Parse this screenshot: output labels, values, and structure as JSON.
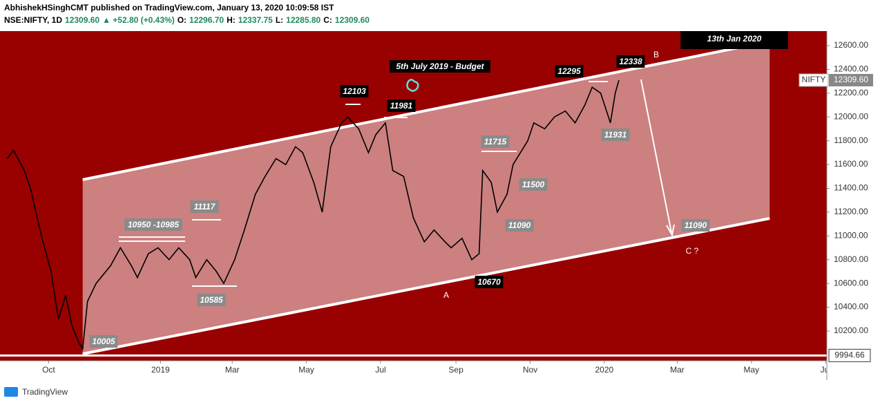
{
  "header": {
    "line1": "AbhishekHSinghCMT published on TradingView.com, January 13, 2020 10:09:58 IST",
    "line2": [
      "NSE:NIFTY, 1D",
      "12309.60",
      "▲ +52.80 (+0.43%)",
      "O:",
      "12296.70",
      "H:",
      "12337.75",
      "L:",
      "12285.80",
      "C:",
      "12309.60"
    ]
  },
  "chart_data": {
    "type": "line",
    "x": [
      "2018-08-28",
      "2018-09-02",
      "2018-09-11",
      "2018-09-16",
      "2018-09-25",
      "2018-10-03",
      "2018-10-09",
      "2018-10-15",
      "2018-10-20",
      "2018-10-26",
      "2018-10-29",
      "2018-11-02",
      "2018-11-09",
      "2018-11-21",
      "2018-11-29",
      "2018-12-08",
      "2018-12-13",
      "2018-12-22",
      "2018-12-30",
      "2019-01-08",
      "2019-01-16",
      "2019-01-25",
      "2019-01-30",
      "2019-02-08",
      "2019-02-16",
      "2019-02-22",
      "2019-03-03",
      "2019-03-11",
      "2019-03-20",
      "2019-03-28",
      "2019-04-06",
      "2019-04-14",
      "2019-04-22",
      "2019-04-28",
      "2019-05-07",
      "2019-05-14",
      "2019-05-21",
      "2019-05-30",
      "2019-06-04",
      "2019-06-13",
      "2019-06-21",
      "2019-06-27",
      "2019-07-05",
      "2019-07-11",
      "2019-07-20",
      "2019-07-28",
      "2019-08-06",
      "2019-08-14",
      "2019-08-23",
      "2019-08-28",
      "2019-09-06",
      "2019-09-14",
      "2019-09-20",
      "2019-09-23",
      "2019-09-30",
      "2019-10-05",
      "2019-10-13",
      "2019-10-18",
      "2019-10-24",
      "2019-10-30",
      "2019-11-04",
      "2019-11-13",
      "2019-11-21",
      "2019-11-30",
      "2019-12-08",
      "2019-12-16",
      "2019-12-22",
      "2019-12-29",
      "2020-01-06",
      "2020-01-10",
      "2020-01-13"
    ],
    "series": [
      {
        "name": "NIFTY",
        "color": "#000000",
        "values": [
          11650,
          11720,
          11550,
          11400,
          11000,
          10700,
          10300,
          10500,
          10250,
          10100,
          10050,
          10450,
          10600,
          10750,
          10900,
          10750,
          10650,
          10850,
          10900,
          10800,
          10900,
          10800,
          10650,
          10800,
          10700,
          10600,
          10800,
          11050,
          11350,
          11500,
          11650,
          11600,
          11750,
          11700,
          11450,
          11200,
          11750,
          11950,
          12000,
          11900,
          11700,
          11850,
          11950,
          11550,
          11500,
          11150,
          10950,
          11050,
          10950,
          10900,
          10980,
          10800,
          10850,
          11550,
          11450,
          11200,
          11350,
          11600,
          11700,
          11800,
          11950,
          11900,
          12000,
          12050,
          11950,
          12100,
          12250,
          12200,
          11950,
          12200,
          12309.6
        ]
      }
    ],
    "xlim": [
      "2018-08-22",
      "2020-07-02"
    ],
    "xticks": [
      {
        "value": "2018-10-01",
        "label": "Oct"
      },
      {
        "value": "2019-01-01",
        "label": "2019"
      },
      {
        "value": "2019-03-01",
        "label": "Mar"
      },
      {
        "value": "2019-05-01",
        "label": "May"
      },
      {
        "value": "2019-07-01",
        "label": "Jul"
      },
      {
        "value": "2019-09-01",
        "label": "Sep"
      },
      {
        "value": "2019-11-01",
        "label": "Nov"
      },
      {
        "value": "2020-01-01",
        "label": "2020"
      },
      {
        "value": "2020-03-01",
        "label": "Mar"
      },
      {
        "value": "2020-05-01",
        "label": "May"
      },
      {
        "value": "2020-07-01",
        "label": "Jul"
      }
    ],
    "ylim": [
      9950,
      12722
    ],
    "yticks": [
      {
        "value": 10200,
        "label": "10200.00"
      },
      {
        "value": 10400,
        "label": "10400.00"
      },
      {
        "value": 10600,
        "label": "10600.00"
      },
      {
        "value": 10800,
        "label": "10800.00"
      },
      {
        "value": 11000,
        "label": "11000.00"
      },
      {
        "value": 11200,
        "label": "11200.00"
      },
      {
        "value": 11400,
        "label": "11400.00"
      },
      {
        "value": 11600,
        "label": "11600.00"
      },
      {
        "value": 11800,
        "label": "11800.00"
      },
      {
        "value": 12000,
        "label": "12000.00"
      },
      {
        "value": 12200,
        "label": "12200.00"
      },
      {
        "value": 12400,
        "label": "12400.00"
      },
      {
        "value": 12600,
        "label": "12600.00"
      }
    ],
    "grid": false,
    "background": "#990000",
    "last_price": {
      "value": 12309.6,
      "label": "12309.60"
    },
    "support": 9994.66,
    "channel": {
      "x": [
        "2018-10-29",
        "2020-05-16"
      ],
      "upper": [
        11473,
        12635
      ],
      "lower": [
        10008,
        11147
      ]
    },
    "annotations": [
      {
        "text": "13th Jan 2020",
        "style": "title"
      },
      {
        "text": "B",
        "style": "plain"
      },
      {
        "text": 12338,
        "style": "dark"
      },
      {
        "text": 12295,
        "style": "dark"
      },
      {
        "text": "5th July 2019 - Budget",
        "style": "dark"
      },
      {
        "text": 12103,
        "style": "dark"
      },
      {
        "text": 11981,
        "style": "dark"
      },
      {
        "text": 11715,
        "style": "gray"
      },
      {
        "text": 11931,
        "style": "gray"
      },
      {
        "text": 11500,
        "style": "gray"
      },
      {
        "text": 11090,
        "style": "gray"
      },
      {
        "text": 11090,
        "style": "gray"
      },
      {
        "text": 11117,
        "style": "gray"
      },
      {
        "text": "10950 -10985",
        "style": "gray"
      },
      {
        "text": 10585,
        "style": "gray"
      },
      {
        "text": 10670,
        "style": "dark"
      },
      {
        "text": "A",
        "style": "plain"
      },
      {
        "text": "C ?",
        "style": "plain"
      },
      {
        "text": 10005,
        "style": "gray"
      }
    ]
  },
  "footer": "TradingView"
}
